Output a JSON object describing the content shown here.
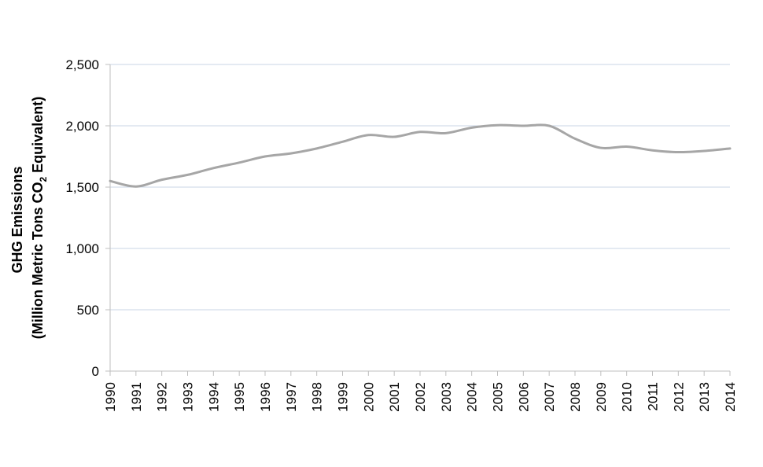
{
  "chart_data": {
    "type": "line",
    "title": "",
    "xlabel": "",
    "ylabel_line1": "GHG Emissions",
    "ylabel_line2_prefix": "(Million Metric Tons CO",
    "ylabel_line2_sub": "2",
    "ylabel_line2_suffix": " Equivalent)",
    "ylim": [
      0,
      2500
    ],
    "yticks": [
      0,
      500,
      1000,
      1500,
      2000,
      2500
    ],
    "ytick_labels": [
      "0",
      "500",
      "1,000",
      "1,500",
      "2,000",
      "2,500"
    ],
    "grid": "horizontal",
    "legend": "none",
    "line_color": "#a6a6a6",
    "grid_color": "#c9d6e6",
    "categories": [
      "1990",
      "1991",
      "1992",
      "1993",
      "1994",
      "1995",
      "1996",
      "1997",
      "1998",
      "1999",
      "2000",
      "2001",
      "2002",
      "2003",
      "2004",
      "2005",
      "2006",
      "2007",
      "2008",
      "2009",
      "2010",
      "2011",
      "2012",
      "2013",
      "2014"
    ],
    "values": [
      1550,
      1505,
      1560,
      1600,
      1655,
      1700,
      1750,
      1775,
      1815,
      1870,
      1925,
      1910,
      1950,
      1940,
      1985,
      2005,
      2000,
      2000,
      1895,
      1820,
      1830,
      1800,
      1785,
      1795,
      1815
    ]
  }
}
